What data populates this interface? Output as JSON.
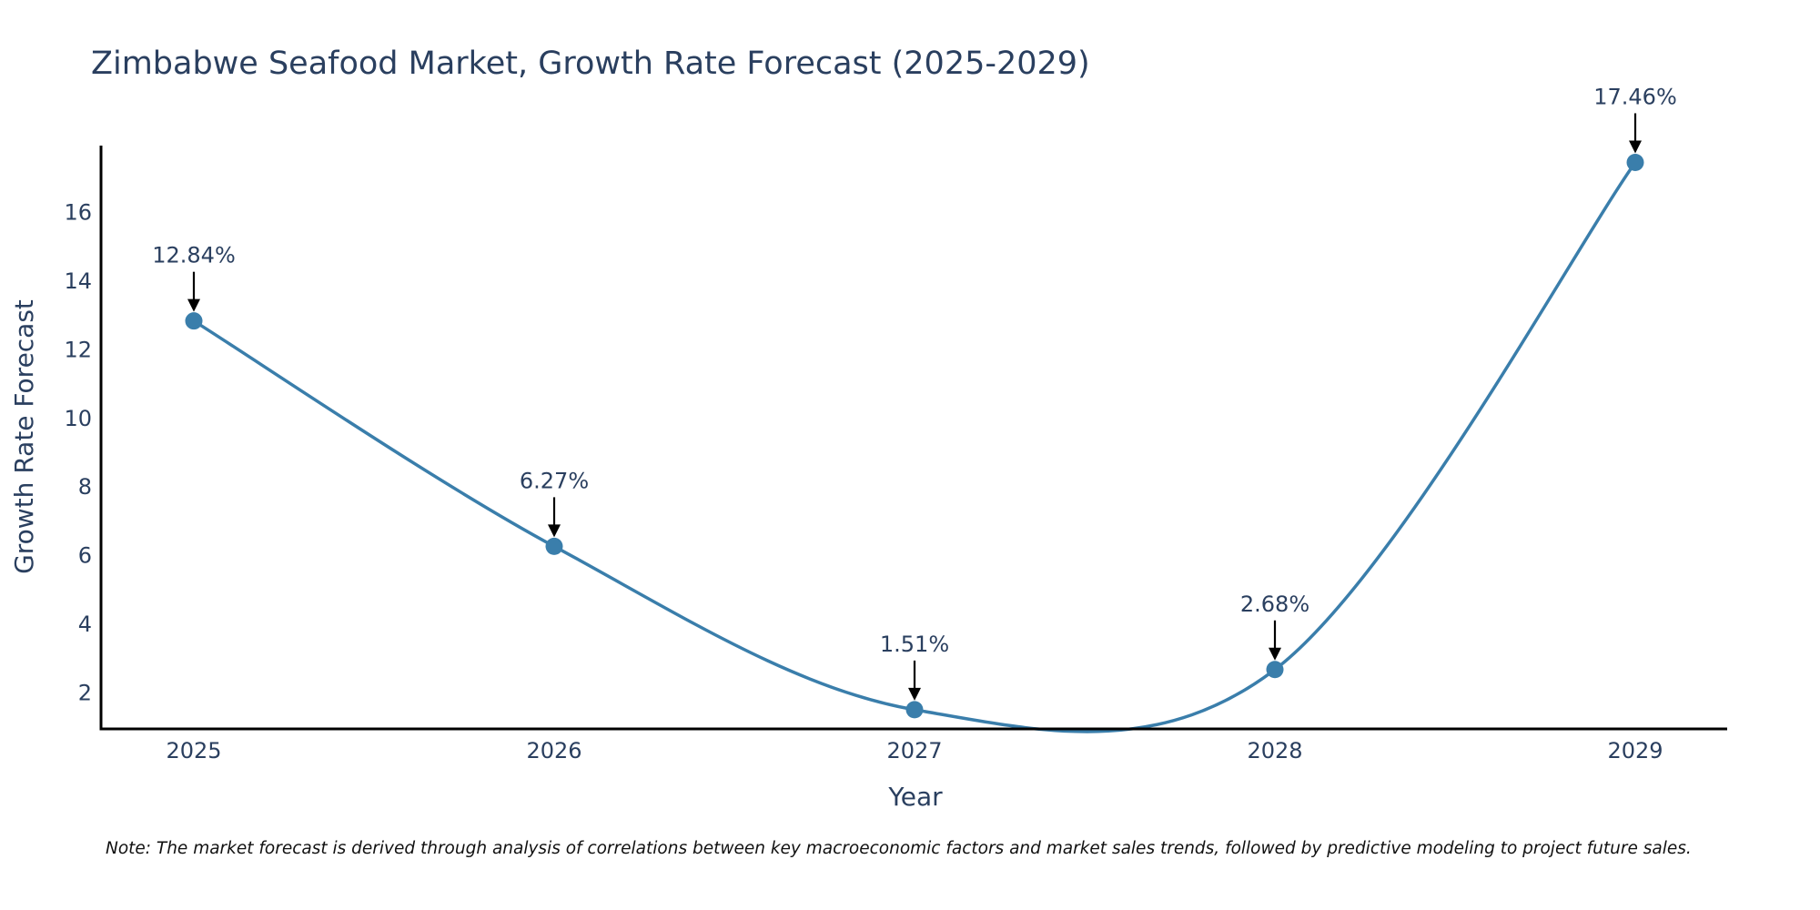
{
  "chart_data": {
    "type": "line",
    "title": "Zimbabwe Seafood Market, Growth Rate Forecast (2025-2029)",
    "xlabel": "Year",
    "ylabel": "Growth Rate Forecast",
    "categories": [
      "2025",
      "2026",
      "2027",
      "2028",
      "2029"
    ],
    "values": [
      12.84,
      6.27,
      1.51,
      2.68,
      17.46
    ],
    "data_labels": [
      "12.84%",
      "6.27%",
      "1.51%",
      "2.68%",
      "17.46%"
    ],
    "yticks": [
      "2",
      "4",
      "6",
      "8",
      "10",
      "12",
      "14",
      "16"
    ],
    "ytick_values": [
      2,
      4,
      6,
      8,
      10,
      12,
      14,
      16
    ],
    "ylim": [
      0.95,
      17.95
    ],
    "grid": false,
    "line_shape": "spline",
    "line_color": "#3a7eab",
    "marker_color": "#3a7eab",
    "note": "Note: The market forecast is derived through analysis of correlations between key macroeconomic factors and market sales trends, followed by predictive modeling to project future sales."
  }
}
